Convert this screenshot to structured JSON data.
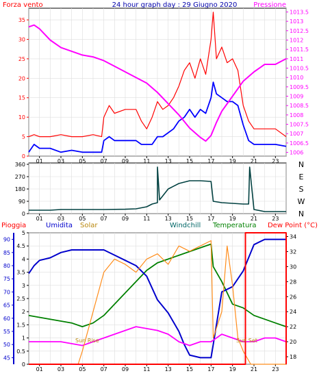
{
  "colors": {
    "wind": "#ff0000",
    "gust": "#0000ff",
    "pressure": "#ff00ff",
    "winddir": "#004040",
    "rain": "#ff0000",
    "humidity": "#0000cc",
    "solar": "#ff8c1a",
    "windchill": "#006666",
    "temperature": "#008000",
    "dewpoint": "#ff00ff",
    "grid": "#dddddd",
    "axis": "#000000"
  },
  "chart_data": [
    {
      "type": "line",
      "name": "wind-pressure-panel",
      "title": "24 hour graph day : 29 Giugno 2020",
      "left_label": "Forza vento",
      "right_label": "Pressione",
      "x_ticks": [
        "01",
        "03",
        "05",
        "07",
        "09",
        "11",
        "13",
        "15",
        "17",
        "19",
        "21",
        "23"
      ],
      "y_left_ticks": [
        "0",
        "5",
        "10",
        "15",
        "20",
        "25",
        "30",
        "35"
      ],
      "y_left_range": [
        0,
        38
      ],
      "y_right_ticks": [
        "1006",
        "1006.5",
        "1007",
        "1007.5",
        "1008",
        "1008.5",
        "1009",
        "1009.5",
        "1010",
        "1010.5",
        "1011",
        "1011.5",
        "1012",
        "1012.5",
        "1013",
        "1013.5"
      ],
      "y_right_range": [
        1005.8,
        1013.7
      ],
      "series": [
        {
          "key": "wind",
          "values": [
            [
              0,
              5
            ],
            [
              0.5,
              5.5
            ],
            [
              1,
              5
            ],
            [
              2,
              5
            ],
            [
              3,
              5.5
            ],
            [
              4,
              5
            ],
            [
              5,
              5
            ],
            [
              6,
              5.5
            ],
            [
              6.8,
              5
            ],
            [
              7,
              10
            ],
            [
              7.5,
              13
            ],
            [
              8,
              11
            ],
            [
              9,
              12
            ],
            [
              10,
              12
            ],
            [
              10.5,
              9
            ],
            [
              11,
              7
            ],
            [
              11.5,
              10
            ],
            [
              12,
              14
            ],
            [
              12.5,
              12
            ],
            [
              13,
              13
            ],
            [
              13.5,
              15
            ],
            [
              14,
              18
            ],
            [
              14.5,
              22
            ],
            [
              15,
              24
            ],
            [
              15.5,
              20
            ],
            [
              16,
              25
            ],
            [
              16.5,
              21
            ],
            [
              17,
              30
            ],
            [
              17.2,
              37
            ],
            [
              17.5,
              25
            ],
            [
              18,
              28
            ],
            [
              18.5,
              24
            ],
            [
              19,
              25
            ],
            [
              19.5,
              22
            ],
            [
              20,
              13
            ],
            [
              20.5,
              9
            ],
            [
              21,
              7
            ],
            [
              22,
              7
            ],
            [
              22.5,
              7
            ],
            [
              23,
              7
            ],
            [
              24,
              5
            ]
          ]
        },
        {
          "key": "gust",
          "values": [
            [
              0,
              1
            ],
            [
              0.5,
              3
            ],
            [
              1,
              2
            ],
            [
              2,
              2
            ],
            [
              3,
              1
            ],
            [
              4,
              1.5
            ],
            [
              5,
              1
            ],
            [
              6,
              1
            ],
            [
              6.8,
              1
            ],
            [
              7,
              4
            ],
            [
              7.5,
              5
            ],
            [
              8,
              4
            ],
            [
              9,
              4
            ],
            [
              10,
              4
            ],
            [
              10.5,
              3
            ],
            [
              11,
              3
            ],
            [
              11.5,
              3
            ],
            [
              12,
              5
            ],
            [
              12.5,
              5
            ],
            [
              13,
              6
            ],
            [
              13.5,
              7
            ],
            [
              14,
              9
            ],
            [
              14.5,
              10
            ],
            [
              15,
              12
            ],
            [
              15.5,
              10
            ],
            [
              16,
              12
            ],
            [
              16.5,
              11
            ],
            [
              17,
              15
            ],
            [
              17.2,
              19
            ],
            [
              17.5,
              16
            ],
            [
              18,
              15
            ],
            [
              18.5,
              14
            ],
            [
              19,
              14
            ],
            [
              19.5,
              13
            ],
            [
              20,
              8
            ],
            [
              20.5,
              4
            ],
            [
              21,
              3
            ],
            [
              22,
              3
            ],
            [
              22.5,
              3
            ],
            [
              23,
              3
            ],
            [
              24,
              2.5
            ]
          ]
        },
        {
          "key": "pressure",
          "values": [
            [
              0,
              1012.7
            ],
            [
              0.5,
              1012.8
            ],
            [
              1,
              1012.6
            ],
            [
              2,
              1012.0
            ],
            [
              3,
              1011.6
            ],
            [
              4,
              1011.4
            ],
            [
              5,
              1011.2
            ],
            [
              6,
              1011.1
            ],
            [
              7,
              1010.9
            ],
            [
              8,
              1010.6
            ],
            [
              9,
              1010.3
            ],
            [
              10,
              1010.0
            ],
            [
              11,
              1009.7
            ],
            [
              12,
              1009.2
            ],
            [
              13,
              1008.6
            ],
            [
              14,
              1008.0
            ],
            [
              15,
              1007.3
            ],
            [
              16,
              1006.8
            ],
            [
              16.5,
              1006.6
            ],
            [
              17,
              1006.9
            ],
            [
              17.5,
              1007.6
            ],
            [
              18,
              1008.2
            ],
            [
              19,
              1009.0
            ],
            [
              20,
              1009.8
            ],
            [
              21,
              1010.3
            ],
            [
              22,
              1010.7
            ],
            [
              23,
              1010.7
            ],
            [
              24,
              1011.0
            ]
          ]
        }
      ]
    },
    {
      "type": "line",
      "name": "wind-direction-panel",
      "x_ticks": [
        "01",
        "03",
        "05",
        "07",
        "09",
        "11",
        "13",
        "15",
        "17",
        "19",
        "21",
        "23"
      ],
      "y_left_ticks": [
        "0",
        "90",
        "180",
        "270",
        "360"
      ],
      "y_right_labels": [
        "N",
        "W",
        "S",
        "E",
        "N"
      ],
      "y_range": [
        0,
        370
      ],
      "series": [
        {
          "key": "winddir",
          "values": [
            [
              0,
              25
            ],
            [
              2,
              25
            ],
            [
              3,
              30
            ],
            [
              5,
              30
            ],
            [
              7,
              30
            ],
            [
              9,
              32
            ],
            [
              10,
              35
            ],
            [
              11,
              50
            ],
            [
              11.5,
              70
            ],
            [
              12,
              80
            ],
            [
              12,
              340
            ],
            [
              12.2,
              100
            ],
            [
              13,
              180
            ],
            [
              14,
              220
            ],
            [
              15,
              240
            ],
            [
              16,
              240
            ],
            [
              17,
              235
            ],
            [
              17.2,
              90
            ],
            [
              18,
              80
            ],
            [
              19,
              75
            ],
            [
              20,
              70
            ],
            [
              20.5,
              70
            ],
            [
              20.6,
              340
            ],
            [
              21,
              30
            ],
            [
              22,
              15
            ],
            [
              24,
              15
            ]
          ]
        }
      ]
    },
    {
      "type": "line",
      "name": "climate-panel",
      "legend": [
        "Pioggia",
        "Umidita",
        "Solar",
        "Windchill",
        "Temperatura",
        "Dew Point (°C)"
      ],
      "annotations": [
        "Sun Rise",
        "Sun Set"
      ],
      "x_ticks": [
        "01",
        "03",
        "05",
        "07",
        "09",
        "11",
        "13",
        "15",
        "17",
        "19",
        "21",
        "23"
      ],
      "y_rain_ticks": [
        "0",
        "0.5",
        "1",
        "1.5",
        "2",
        "2.5",
        "3",
        "3.5",
        "4",
        "4.5",
        "5"
      ],
      "y_rain_range": [
        0,
        5
      ],
      "y_humidity_ticks": [
        "45",
        "50",
        "55",
        "60",
        "65",
        "70",
        "75",
        "80",
        "85",
        "90"
      ],
      "y_humidity_range": [
        42.5,
        92.5
      ],
      "y_temp_ticks": [
        "18",
        "20",
        "22",
        "24",
        "26",
        "28",
        "30",
        "32",
        "34"
      ],
      "y_temp_range": [
        17,
        34.5
      ],
      "series": [
        {
          "key": "temperature",
          "values": [
            [
              0,
              23.5
            ],
            [
              2,
              23
            ],
            [
              4,
              22.5
            ],
            [
              5,
              22
            ],
            [
              6,
              22.5
            ],
            [
              7,
              23.5
            ],
            [
              8,
              25
            ],
            [
              9,
              26.5
            ],
            [
              10,
              28
            ],
            [
              11,
              29.5
            ],
            [
              12,
              30.5
            ],
            [
              13,
              31
            ],
            [
              14,
              31.5
            ],
            [
              15,
              32
            ],
            [
              16,
              32.5
            ],
            [
              17,
              33
            ],
            [
              17.2,
              30
            ],
            [
              18,
              28
            ],
            [
              19,
              25
            ],
            [
              20,
              24.5
            ],
            [
              21,
              23.5
            ],
            [
              22,
              23
            ],
            [
              23,
              22.5
            ],
            [
              24,
              22
            ]
          ]
        },
        {
          "key": "humidity",
          "values": [
            [
              0,
              77
            ],
            [
              0.5,
              80
            ],
            [
              1,
              82
            ],
            [
              2,
              83
            ],
            [
              3,
              85
            ],
            [
              4,
              86
            ],
            [
              5,
              86
            ],
            [
              6,
              86
            ],
            [
              7,
              86
            ],
            [
              8,
              84
            ],
            [
              9,
              82
            ],
            [
              10,
              80
            ],
            [
              11,
              76
            ],
            [
              12,
              67
            ],
            [
              13,
              62
            ],
            [
              14,
              55
            ],
            [
              14.5,
              50
            ],
            [
              15,
              46
            ],
            [
              16,
              45
            ],
            [
              17,
              45
            ],
            [
              17.2,
              50
            ],
            [
              18,
              70
            ],
            [
              19,
              72
            ],
            [
              19.5,
              75
            ],
            [
              20,
              78
            ],
            [
              21,
              88
            ],
            [
              22,
              90
            ],
            [
              23,
              90
            ],
            [
              24,
              90
            ]
          ]
        },
        {
          "key": "dewpoint",
          "values": [
            [
              0,
              20
            ],
            [
              3,
              20
            ],
            [
              5,
              19.5
            ],
            [
              6,
              20
            ],
            [
              7,
              20.5
            ],
            [
              8,
              21
            ],
            [
              9,
              21.5
            ],
            [
              10,
              22
            ],
            [
              12,
              21.5
            ],
            [
              13,
              21
            ],
            [
              14,
              20
            ],
            [
              15,
              19.5
            ],
            [
              16,
              20
            ],
            [
              17,
              20
            ],
            [
              18,
              21
            ],
            [
              19,
              20.5
            ],
            [
              20,
              20
            ],
            [
              21,
              20
            ],
            [
              22,
              20.5
            ],
            [
              23,
              20.5
            ],
            [
              24,
              20
            ]
          ]
        },
        {
          "key": "solar",
          "values": [
            [
              0,
              0
            ],
            [
              4.6,
              0
            ],
            [
              5,
              0.5
            ],
            [
              6,
              2
            ],
            [
              7,
              3.5
            ],
            [
              8,
              4
            ],
            [
              9,
              3.8
            ],
            [
              10,
              3.5
            ],
            [
              11,
              4
            ],
            [
              12,
              4.2
            ],
            [
              13,
              3.8
            ],
            [
              14,
              4.5
            ],
            [
              15,
              4.3
            ],
            [
              16,
              4.5
            ],
            [
              17,
              4.7
            ],
            [
              17.2,
              1
            ],
            [
              18,
              2
            ],
            [
              18.5,
              4.5
            ],
            [
              19,
              3
            ],
            [
              19.5,
              1
            ],
            [
              20,
              0.5
            ],
            [
              20.7,
              0
            ],
            [
              24,
              0
            ]
          ]
        },
        {
          "key": "rain",
          "values": [
            [
              0,
              0
            ],
            [
              20.2,
              0
            ],
            [
              20.2,
              5
            ],
            [
              24,
              5
            ],
            [
              24,
              0
            ]
          ]
        }
      ]
    }
  ]
}
